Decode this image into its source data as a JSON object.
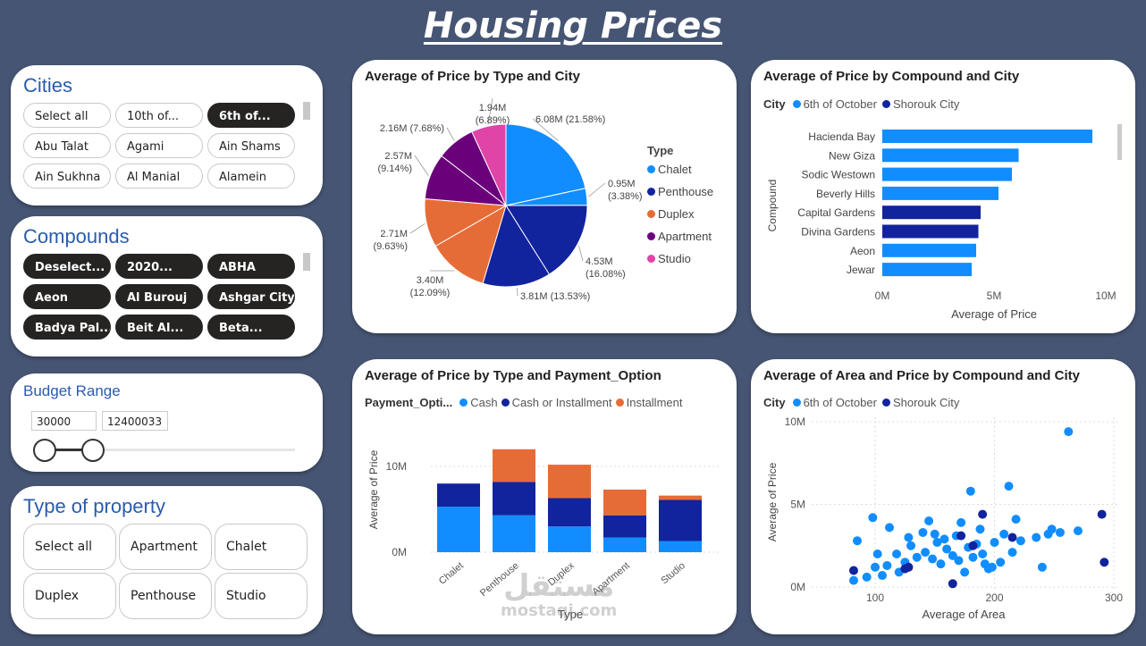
{
  "title": "Housing Prices",
  "colors": {
    "blue": "#118DFF",
    "navy": "#12239E",
    "orange": "#E66C37",
    "purple": "#6B007B",
    "pink": "#E044A7",
    "title_blue": "#2a5cae"
  },
  "cities": {
    "title": "Cities",
    "items": [
      {
        "label": "Select all",
        "selected": false
      },
      {
        "label": "10th of...",
        "selected": false
      },
      {
        "label": "6th of...",
        "selected": true
      },
      {
        "label": "Abu Talat",
        "selected": false
      },
      {
        "label": "Agami",
        "selected": false
      },
      {
        "label": "Ain Shams",
        "selected": false
      },
      {
        "label": "Ain Sukhna",
        "selected": false
      },
      {
        "label": "Al Manial",
        "selected": false
      },
      {
        "label": "Alamein",
        "selected": false
      }
    ]
  },
  "compounds": {
    "title": "Compounds",
    "items": [
      {
        "label": "Deselect...",
        "selected": true
      },
      {
        "label": "2020...",
        "selected": true
      },
      {
        "label": "ABHA",
        "selected": true
      },
      {
        "label": "Aeon",
        "selected": true
      },
      {
        "label": "Al Burouj",
        "selected": true
      },
      {
        "label": "Ashgar City",
        "selected": true
      },
      {
        "label": "Badya Pal...",
        "selected": true
      },
      {
        "label": "Beit Al...",
        "selected": true
      },
      {
        "label": "Beta...",
        "selected": true
      }
    ]
  },
  "budget": {
    "title": "Budget Range",
    "min": "30000",
    "max": "12400033"
  },
  "property_type": {
    "title": "Type of property",
    "items": [
      "Select all",
      "Apartment",
      "Chalet",
      "Duplex",
      "Penthouse",
      "Studio"
    ]
  },
  "pie_chart": {
    "title": "Average of Price by Type and City",
    "legend_title": "Type",
    "legend": [
      {
        "label": "Chalet",
        "color": "#118DFF"
      },
      {
        "label": "Penthouse",
        "color": "#12239E"
      },
      {
        "label": "Duplex",
        "color": "#E66C37"
      },
      {
        "label": "Apartment",
        "color": "#6B007B"
      },
      {
        "label": "Studio",
        "color": "#E044A7"
      }
    ],
    "labels": [
      {
        "l1": "6.08M (21.58%)",
        "l2": ""
      },
      {
        "l1": "0.95M",
        "l2": "(3.38%)"
      },
      {
        "l1": "4.53M",
        "l2": "(16.08%)"
      },
      {
        "l1": "3.81M (13.53%)",
        "l2": ""
      },
      {
        "l1": "3.40M",
        "l2": "(12.09%)"
      },
      {
        "l1": "2.71M",
        "l2": "(9.63%)"
      },
      {
        "l1": "2.57M",
        "l2": "(9.14%)"
      },
      {
        "l1": "2.16M (7.68%)",
        "l2": ""
      },
      {
        "l1": "1.94M",
        "l2": "(6.89%)"
      }
    ]
  },
  "hbar_chart": {
    "title": "Average of Price by Compound and City",
    "legend_title": "City",
    "legend": [
      {
        "label": "6th of October",
        "color": "#118DFF"
      },
      {
        "label": "Shorouk City",
        "color": "#12239E"
      }
    ],
    "ylabel": "Compound",
    "xlabel": "Average of Price",
    "ticks": [
      "0M",
      "5M",
      "10M"
    ]
  },
  "stacked_chart": {
    "title": "Average of Price by Type and Payment_Option",
    "legend_title": "Payment_Opti...",
    "legend": [
      {
        "label": "Cash",
        "color": "#118DFF"
      },
      {
        "label": "Cash or Installment",
        "color": "#12239E"
      },
      {
        "label": "Installment",
        "color": "#E66C37"
      }
    ],
    "ylabel": "Average of Price",
    "xlabel": "Type",
    "ticks": [
      "0M",
      "10M"
    ]
  },
  "scatter_chart": {
    "title": "Average of Area and Price by Compound and City",
    "legend_title": "City",
    "legend": [
      {
        "label": "6th of October",
        "color": "#118DFF"
      },
      {
        "label": "Shorouk City",
        "color": "#12239E"
      }
    ],
    "ylabel": "Average of Price",
    "xlabel": "Average of Area",
    "yticks": [
      "0M",
      "5M",
      "10M"
    ],
    "xticks": [
      "100",
      "200",
      "300"
    ]
  },
  "chart_data": [
    {
      "type": "pie",
      "title": "Average of Price by Type and City",
      "legend_title": "Type",
      "slices": [
        {
          "label": "Chalet",
          "city": "6th of October",
          "value": 6.08,
          "percent": 21.58,
          "color": "#118DFF"
        },
        {
          "label": "Chalet",
          "city": "Shorouk City",
          "value": 0.95,
          "percent": 3.38,
          "color": "#118DFF"
        },
        {
          "label": "Penthouse",
          "city": "6th of October",
          "value": 4.53,
          "percent": 16.08,
          "color": "#12239E"
        },
        {
          "label": "Penthouse",
          "city": "Shorouk City",
          "value": 3.81,
          "percent": 13.53,
          "color": "#12239E"
        },
        {
          "label": "Duplex",
          "city": "6th of October",
          "value": 3.4,
          "percent": 12.09,
          "color": "#E66C37"
        },
        {
          "label": "Duplex",
          "city": "Shorouk City",
          "value": 2.71,
          "percent": 9.63,
          "color": "#E66C37"
        },
        {
          "label": "Apartment",
          "city": "6th of October",
          "value": 2.57,
          "percent": 9.14,
          "color": "#6B007B"
        },
        {
          "label": "Apartment",
          "city": "Shorouk City",
          "value": 2.16,
          "percent": 7.68,
          "color": "#6B007B"
        },
        {
          "label": "Studio",
          "city": "6th of October",
          "value": 1.94,
          "percent": 6.89,
          "color": "#E044A7"
        }
      ]
    },
    {
      "type": "bar",
      "orientation": "horizontal",
      "title": "Average of Price by Compound and City",
      "categories": [
        "Hacienda Bay",
        "New Giza",
        "Sodic Westown",
        "Beverly Hills",
        "Capital Gardens",
        "Divina Gardens",
        "Aeon",
        "Jewar"
      ],
      "values": [
        9.4,
        6.1,
        5.8,
        5.2,
        4.4,
        4.3,
        4.2,
        4.0
      ],
      "cities": [
        "6th of October",
        "6th of October",
        "6th of October",
        "6th of October",
        "Shorouk City",
        "Shorouk City",
        "6th of October",
        "6th of October"
      ],
      "xlabel": "Average of Price",
      "ylabel": "Compound",
      "xlim": [
        0,
        10
      ]
    },
    {
      "type": "bar",
      "stacked": true,
      "title": "Average of Price by Type and Payment_Option",
      "categories": [
        "Chalet",
        "Penthouse",
        "Duplex",
        "Apartment",
        "Studio"
      ],
      "series": [
        {
          "name": "Cash",
          "values": [
            5.3,
            4.3,
            3.0,
            1.7,
            1.3
          ]
        },
        {
          "name": "Cash or Installment",
          "values": [
            2.7,
            3.9,
            3.3,
            2.6,
            4.8
          ]
        },
        {
          "name": "Installment",
          "values": [
            0,
            3.8,
            3.9,
            3.0,
            0.5
          ]
        }
      ],
      "xlabel": "Type",
      "ylabel": "Average of Price",
      "ylim": [
        0,
        15
      ]
    },
    {
      "type": "scatter",
      "title": "Average of Area and Price by Compound and City",
      "xlabel": "Average of Area",
      "ylabel": "Average of Price",
      "xlim": [
        75,
        300
      ],
      "ylim": [
        0,
        10
      ],
      "series": [
        {
          "name": "6th of October",
          "points": [
            [
              82,
              0.4
            ],
            [
              85,
              2.8
            ],
            [
              93,
              0.6
            ],
            [
              98,
              4.2
            ],
            [
              100,
              1.2
            ],
            [
              102,
              2.0
            ],
            [
              106,
              0.7
            ],
            [
              110,
              1.3
            ],
            [
              112,
              3.6
            ],
            [
              118,
              2.0
            ],
            [
              120,
              0.9
            ],
            [
              125,
              1.5
            ],
            [
              128,
              3.0
            ],
            [
              130,
              2.5
            ],
            [
              135,
              1.8
            ],
            [
              140,
              3.3
            ],
            [
              142,
              2.1
            ],
            [
              145,
              4.0
            ],
            [
              148,
              1.7
            ],
            [
              150,
              3.2
            ],
            [
              152,
              2.7
            ],
            [
              155,
              1.4
            ],
            [
              158,
              2.9
            ],
            [
              160,
              2.3
            ],
            [
              165,
              1.9
            ],
            [
              168,
              3.1
            ],
            [
              170,
              1.6
            ],
            [
              172,
              3.9
            ],
            [
              175,
              0.9
            ],
            [
              178,
              2.4
            ],
            [
              180,
              5.8
            ],
            [
              182,
              1.8
            ],
            [
              185,
              2.6
            ],
            [
              188,
              3.5
            ],
            [
              190,
              2.0
            ],
            [
              192,
              1.4
            ],
            [
              195,
              1.1
            ],
            [
              198,
              1.2
            ],
            [
              200,
              2.7
            ],
            [
              205,
              1.5
            ],
            [
              208,
              3.2
            ],
            [
              212,
              6.1
            ],
            [
              215,
              2.1
            ],
            [
              218,
              4.1
            ],
            [
              222,
              2.8
            ],
            [
              235,
              3.0
            ],
            [
              240,
              1.2
            ],
            [
              245,
              3.2
            ],
            [
              248,
              3.5
            ],
            [
              255,
              3.3
            ],
            [
              262,
              9.4
            ],
            [
              270,
              3.4
            ]
          ]
        },
        {
          "name": "Shorouk City",
          "points": [
            [
              82,
              1.0
            ],
            [
              125,
              1.1
            ],
            [
              128,
              1.2
            ],
            [
              165,
              0.2
            ],
            [
              172,
              3.1
            ],
            [
              182,
              2.5
            ],
            [
              190,
              4.4
            ],
            [
              215,
              3.0
            ],
            [
              290,
              4.4
            ],
            [
              292,
              1.5
            ]
          ]
        }
      ]
    }
  ]
}
